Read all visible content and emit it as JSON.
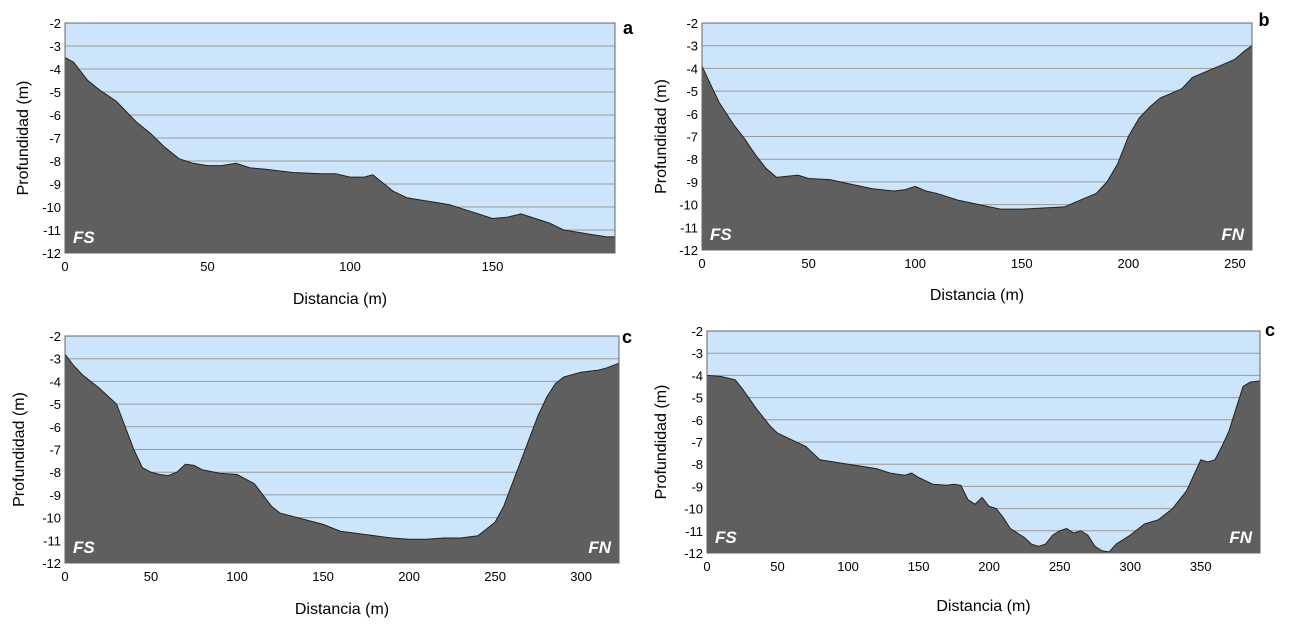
{
  "chart_data": [
    {
      "type": "area",
      "panel_letter": "a",
      "xlabel": "Distancia (m)",
      "ylabel": "Profundidad (m)",
      "xlim": [
        0,
        193
      ],
      "ylim": [
        -12,
        -2
      ],
      "xticks": [
        0,
        50,
        100,
        150
      ],
      "yticks": [
        -2,
        -3,
        -4,
        -5,
        -6,
        -7,
        -8,
        -9,
        -10,
        -11,
        -12
      ],
      "grid": true,
      "labels": {
        "left": "FS",
        "right": ""
      },
      "x": [
        0,
        3,
        8,
        12,
        18,
        25,
        30,
        35,
        40,
        45,
        50,
        55,
        60,
        65,
        70,
        80,
        90,
        95,
        100,
        105,
        108,
        110,
        115,
        120,
        125,
        130,
        135,
        140,
        145,
        150,
        155,
        160,
        165,
        170,
        175,
        180,
        185,
        190,
        193
      ],
      "y": [
        -3.5,
        -3.7,
        -4.5,
        -4.9,
        -5.4,
        -6.3,
        -6.8,
        -7.4,
        -7.9,
        -8.1,
        -8.2,
        -8.2,
        -8.1,
        -8.3,
        -8.35,
        -8.5,
        -8.55,
        -8.55,
        -8.7,
        -8.7,
        -8.6,
        -8.8,
        -9.3,
        -9.6,
        -9.7,
        -9.8,
        -9.9,
        -10.1,
        -10.3,
        -10.5,
        -10.45,
        -10.3,
        -10.5,
        -10.7,
        -11.0,
        -11.1,
        -11.2,
        -11.3,
        -11.3
      ]
    },
    {
      "type": "area",
      "panel_letter": "b",
      "xlabel": "Distancia (m)",
      "ylabel": "Profundidad (m)",
      "xlim": [
        0,
        258
      ],
      "ylim": [
        -12,
        -2
      ],
      "xticks": [
        0,
        50,
        100,
        150,
        200,
        250
      ],
      "yticks": [
        -2,
        -3,
        -4,
        -5,
        -6,
        -7,
        -8,
        -9,
        -10,
        -11,
        -12
      ],
      "grid": true,
      "labels": {
        "left": "FS",
        "right": "FN"
      },
      "x": [
        0,
        3,
        8,
        15,
        20,
        25,
        30,
        35,
        40,
        45,
        50,
        60,
        70,
        80,
        90,
        95,
        100,
        105,
        110,
        120,
        130,
        140,
        150,
        160,
        170,
        175,
        180,
        185,
        190,
        195,
        200,
        205,
        210,
        215,
        220,
        225,
        230,
        235,
        240,
        245,
        250,
        255,
        258
      ],
      "y": [
        -3.9,
        -4.5,
        -5.5,
        -6.5,
        -7.1,
        -7.8,
        -8.4,
        -8.8,
        -8.75,
        -8.7,
        -8.85,
        -8.9,
        -9.1,
        -9.3,
        -9.4,
        -9.35,
        -9.2,
        -9.4,
        -9.5,
        -9.8,
        -10.0,
        -10.2,
        -10.2,
        -10.15,
        -10.1,
        -9.9,
        -9.7,
        -9.5,
        -9.0,
        -8.2,
        -7.0,
        -6.2,
        -5.7,
        -5.3,
        -5.1,
        -4.9,
        -4.4,
        -4.2,
        -4.0,
        -3.8,
        -3.6,
        -3.2,
        -3.0
      ]
    },
    {
      "type": "area",
      "panel_letter": "c",
      "xlabel": "Distancia (m)",
      "ylabel": "Profundidad (m)",
      "xlim": [
        0,
        322
      ],
      "ylim": [
        -12,
        -2
      ],
      "xticks": [
        0,
        50,
        100,
        150,
        200,
        250,
        300
      ],
      "yticks": [
        -2,
        -3,
        -4,
        -5,
        -6,
        -7,
        -8,
        -9,
        -10,
        -11,
        -12
      ],
      "grid": true,
      "labels": {
        "left": "FS",
        "right": "FN"
      },
      "x": [
        0,
        5,
        10,
        20,
        30,
        35,
        40,
        45,
        50,
        55,
        60,
        65,
        70,
        75,
        80,
        90,
        100,
        110,
        115,
        120,
        125,
        130,
        140,
        150,
        160,
        170,
        180,
        190,
        200,
        210,
        220,
        230,
        240,
        245,
        250,
        255,
        260,
        265,
        270,
        275,
        280,
        285,
        290,
        300,
        310,
        315,
        322
      ],
      "y": [
        -2.8,
        -3.3,
        -3.7,
        -4.3,
        -5.0,
        -6.0,
        -7.0,
        -7.8,
        -8.0,
        -8.1,
        -8.15,
        -8.0,
        -7.65,
        -7.7,
        -7.9,
        -8.05,
        -8.1,
        -8.5,
        -9.0,
        -9.5,
        -9.8,
        -9.9,
        -10.1,
        -10.3,
        -10.6,
        -10.7,
        -10.8,
        -10.9,
        -10.95,
        -10.95,
        -10.9,
        -10.9,
        -10.8,
        -10.5,
        -10.2,
        -9.5,
        -8.5,
        -7.5,
        -6.5,
        -5.5,
        -4.7,
        -4.1,
        -3.8,
        -3.6,
        -3.5,
        -3.4,
        -3.2
      ]
    },
    {
      "type": "area",
      "panel_letter": "c",
      "xlabel": "Distancia (m)",
      "ylabel": "Profundidad (m)",
      "xlim": [
        0,
        392
      ],
      "ylim": [
        -12,
        -2
      ],
      "xticks": [
        0,
        50,
        100,
        150,
        200,
        250,
        300,
        350
      ],
      "yticks": [
        -2,
        -3,
        -4,
        -5,
        -6,
        -7,
        -8,
        -9,
        -10,
        -11,
        -12
      ],
      "grid": true,
      "labels": {
        "left": "FS",
        "right": "FN"
      },
      "x": [
        0,
        10,
        20,
        25,
        35,
        45,
        50,
        60,
        70,
        80,
        90,
        100,
        110,
        120,
        130,
        140,
        145,
        150,
        160,
        170,
        175,
        180,
        185,
        190,
        195,
        200,
        205,
        210,
        215,
        220,
        225,
        230,
        235,
        240,
        245,
        250,
        255,
        260,
        265,
        270,
        275,
        280,
        285,
        290,
        300,
        310,
        320,
        330,
        340,
        345,
        350,
        355,
        360,
        365,
        370,
        375,
        380,
        385,
        392
      ],
      "y": [
        -4.0,
        -4.05,
        -4.2,
        -4.6,
        -5.5,
        -6.3,
        -6.6,
        -6.9,
        -7.2,
        -7.8,
        -7.9,
        -8.0,
        -8.1,
        -8.2,
        -8.4,
        -8.5,
        -8.4,
        -8.6,
        -8.9,
        -8.95,
        -8.9,
        -8.95,
        -9.6,
        -9.8,
        -9.5,
        -9.9,
        -10.0,
        -10.4,
        -10.9,
        -11.1,
        -11.3,
        -11.6,
        -11.7,
        -11.6,
        -11.2,
        -11.0,
        -10.9,
        -11.1,
        -11.0,
        -11.2,
        -11.7,
        -11.9,
        -11.95,
        -11.6,
        -11.2,
        -10.7,
        -10.5,
        -10.0,
        -9.2,
        -8.5,
        -7.8,
        -7.9,
        -7.8,
        -7.2,
        -6.5,
        -5.5,
        -4.5,
        -4.3,
        -4.25
      ]
    }
  ]
}
